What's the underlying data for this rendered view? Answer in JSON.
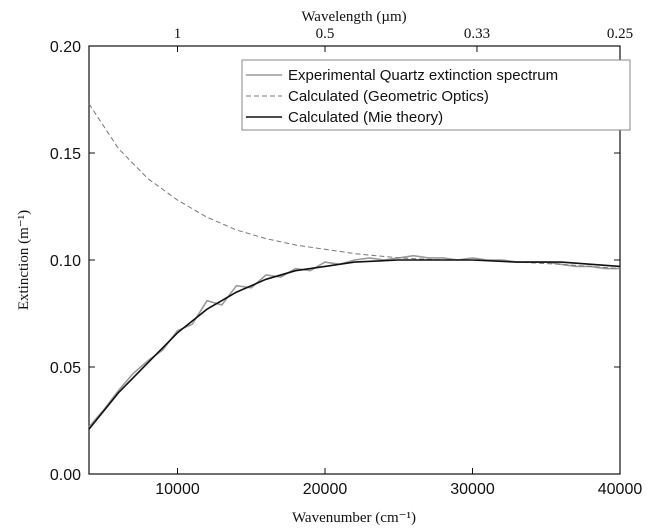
{
  "chart_data": {
    "type": "line",
    "x_label": "Wavenumber (cm⁻¹)",
    "y_label": "Extinction (m⁻¹)",
    "x2_label": "Wavelength (µm)",
    "xlim": [
      4000,
      40000
    ],
    "xticks": [
      10000,
      20000,
      30000,
      40000
    ],
    "ylim": [
      0,
      0.2
    ],
    "yticks": [
      {
        "value": 0,
        "label": "0.00"
      },
      0.05,
      {
        "value": 0.1,
        "label": "0.10"
      },
      0.15,
      {
        "value": 0.2,
        "label": "0.20"
      }
    ],
    "x2ticks": [
      1,
      0.5,
      0.33,
      0.25
    ],
    "x2_scale": "reciprocal",
    "legend": "upper right",
    "series": [
      {
        "name": "Experimental Quartz extinction spectrum",
        "color": "#9a9a9a",
        "line_style": "solid",
        "x": [
          4000,
          5000,
          6000,
          7000,
          8000,
          9000,
          10000,
          11000,
          12000,
          13000,
          14000,
          15000,
          16000,
          17000,
          18000,
          19000,
          20000,
          21000,
          22000,
          23000,
          24000,
          25000,
          26000,
          27000,
          28000,
          29000,
          30000,
          31000,
          32000,
          33000,
          34000,
          35000,
          36000,
          37000,
          38000,
          39000,
          40000
        ],
        "values": [
          0.022,
          0.03,
          0.039,
          0.047,
          0.053,
          0.058,
          0.067,
          0.07,
          0.081,
          0.079,
          0.088,
          0.087,
          0.093,
          0.092,
          0.096,
          0.095,
          0.099,
          0.098,
          0.1,
          0.101,
          0.1,
          0.101,
          0.102,
          0.101,
          0.101,
          0.1,
          0.101,
          0.1,
          0.1,
          0.099,
          0.099,
          0.099,
          0.098,
          0.097,
          0.097,
          0.096,
          0.096
        ]
      },
      {
        "name": "Calculated (Geometric Optics)",
        "color": "#777777",
        "line_style": "dashed",
        "x": [
          4000,
          6000,
          8000,
          10000,
          12000,
          14000,
          16000,
          18000,
          20000,
          22000,
          25000,
          28000,
          30000,
          33000,
          36000,
          40000
        ],
        "values": [
          0.173,
          0.152,
          0.138,
          0.128,
          0.12,
          0.114,
          0.11,
          0.107,
          0.105,
          0.103,
          0.101,
          0.1,
          0.1,
          0.099,
          0.098,
          0.096
        ]
      },
      {
        "name": "Calculated (Mie theory)",
        "color": "#111111",
        "line_style": "solid",
        "x": [
          4000,
          6000,
          8000,
          10000,
          12000,
          14000,
          16000,
          18000,
          20000,
          22000,
          25000,
          28000,
          30000,
          33000,
          36000,
          40000
        ],
        "values": [
          0.021,
          0.038,
          0.052,
          0.066,
          0.077,
          0.085,
          0.091,
          0.095,
          0.097,
          0.099,
          0.1,
          0.1,
          0.1,
          0.099,
          0.099,
          0.097
        ]
      }
    ]
  }
}
